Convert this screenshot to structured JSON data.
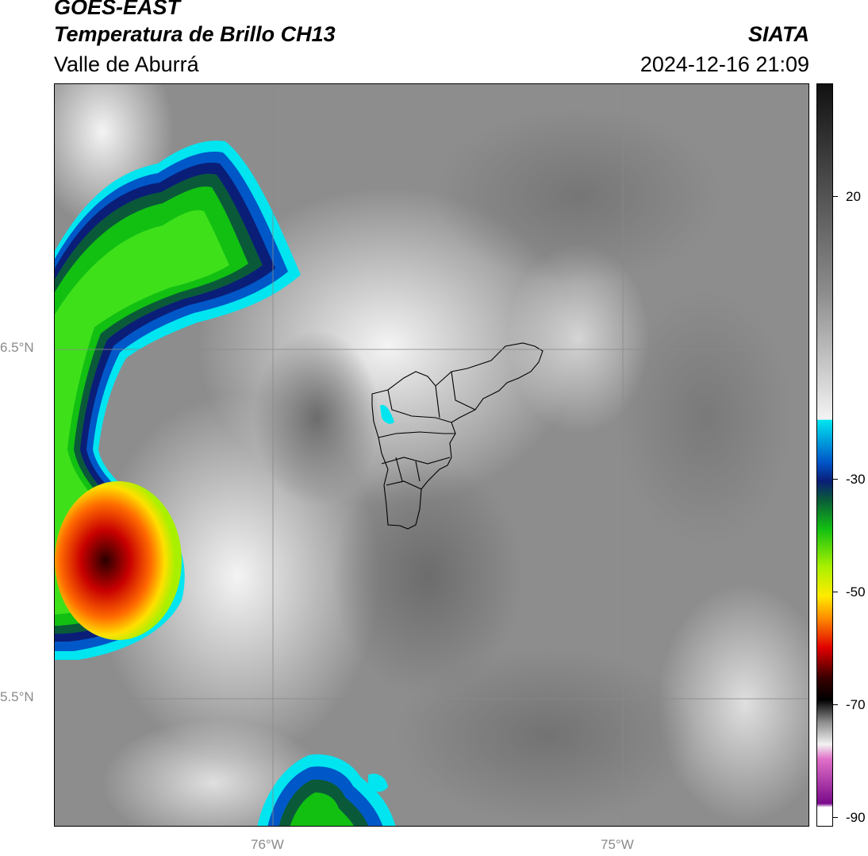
{
  "header": {
    "title_line1": "GOES-EAST",
    "title_line2": "Temperatura de Brillo CH13",
    "subtitle": "Valle de Aburrá",
    "agency": "SIATA",
    "datetime": "2024-12-16 21:09"
  },
  "map": {
    "lat_labels": [
      "6.5°N",
      "5.5°N"
    ],
    "lon_labels": [
      "76°W",
      "75°W"
    ],
    "gridline_color": "#8a8a8a",
    "background_gray": "#8d8d8d"
  },
  "colorbar": {
    "ticks": [
      "20",
      "-30",
      "-50",
      "-70",
      "-90"
    ],
    "colors": {
      "warm_top": "#111111",
      "mid_gray": "#8c8c8c",
      "light": "#f2f2f2",
      "cyan": "#00e5f0",
      "blue": "#0055c8",
      "navy": "#0a1e78",
      "dark_green": "#0a5a3a",
      "green": "#12c012",
      "lime": "#a8f000",
      "yellow": "#ffec00",
      "orange": "#ff8c00",
      "red": "#e00000",
      "dark_red": "#3a0000",
      "black": "#000000",
      "pink": "#e070c8",
      "purple": "#7a0a8a"
    }
  }
}
